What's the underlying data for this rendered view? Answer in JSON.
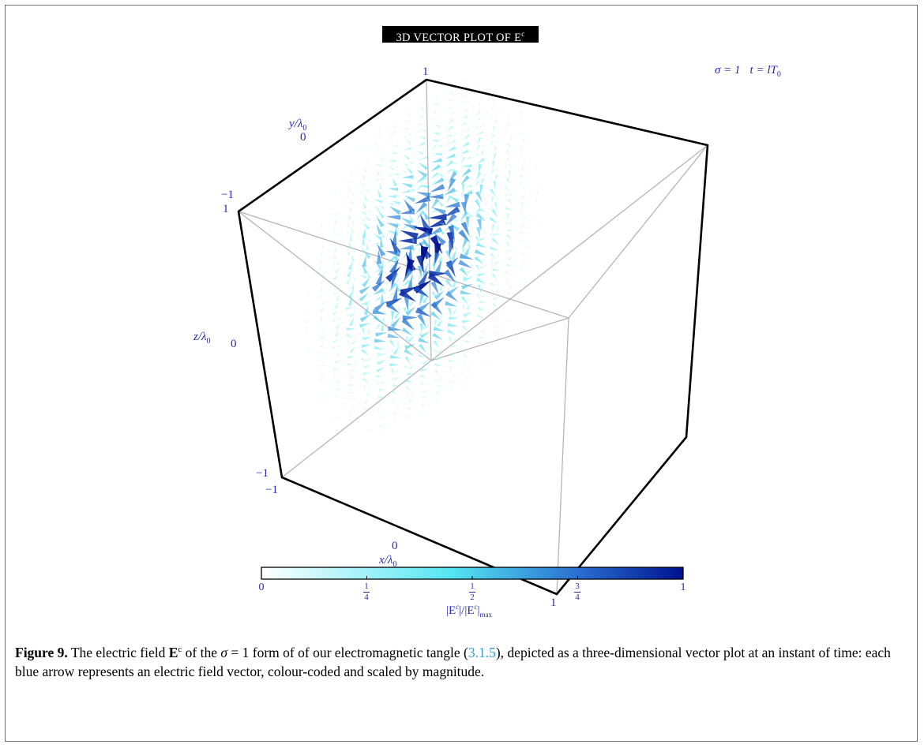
{
  "figure": {
    "title": "3D VECTOR PLOT OF E",
    "title_superscript": "c",
    "params": {
      "sigma": "σ = 1",
      "time": "t = lT",
      "time_sub": "0"
    },
    "axes": {
      "x": {
        "label": "x/λ",
        "label_sub": "0",
        "ticks": [
          "−1",
          "0",
          "1"
        ]
      },
      "y": {
        "label": "y/λ",
        "label_sub": "0",
        "ticks": [
          "−1",
          "0",
          "1"
        ]
      },
      "z": {
        "label": "z/λ",
        "label_sub": "0",
        "ticks": [
          "−1",
          "0",
          "1"
        ]
      }
    },
    "colorbar": {
      "label_pre": "|E",
      "label_sup": "c",
      "label_mid": "|/|E",
      "label_sup2": "c",
      "label_post": "|",
      "label_sub": "max",
      "ticks": [
        {
          "text": "0",
          "value": 0
        },
        {
          "num": "1",
          "den": "4",
          "value": 0.25
        },
        {
          "num": "1",
          "den": "2",
          "value": 0.5
        },
        {
          "num": "3",
          "den": "4",
          "value": 0.75
        },
        {
          "text": "1",
          "value": 1
        }
      ],
      "colors": [
        "#ffffff",
        "#55e6f2",
        "#2a6fd0",
        "#00128f"
      ]
    },
    "caption": {
      "label": "Figure 9.",
      "text_1": " The electric field ",
      "E": "E",
      "E_sup": "c",
      "text_2": " of the ",
      "sigma": "σ",
      "text_3": " = 1 form of of our electromagnetic tangle (",
      "ref": "3.1.5",
      "text_4": "), depicted as a three-dimensional vector plot at an instant of time: each blue arrow represents an electric field vector, colour-coded and scaled by magnitude."
    }
  },
  "chart_data": {
    "type": "vector-field-3d",
    "title": "3D VECTOR PLOT OF E^c",
    "xlabel": "x/λ0",
    "ylabel": "y/λ0",
    "zlabel": "z/λ0",
    "xlim": [
      -1,
      1
    ],
    "ylim": [
      -1,
      1
    ],
    "zlim": [
      -1,
      1
    ],
    "colorbar_range": [
      0,
      1
    ],
    "field_peak_center": [
      0,
      0,
      0
    ]
  }
}
